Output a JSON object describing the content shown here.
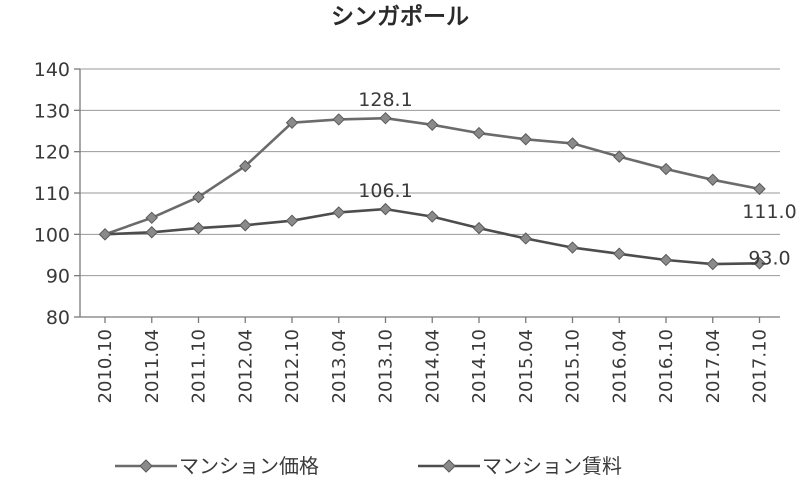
{
  "chart_data": {
    "type": "line",
    "title": "シンガポール",
    "xlabel": "",
    "ylabel": "",
    "ylim": [
      80,
      140
    ],
    "yticks": [
      80,
      90,
      100,
      110,
      120,
      130,
      140
    ],
    "grid": true,
    "legend_position": "bottom",
    "categories": [
      "2010.10",
      "2011.04",
      "2011.10",
      "2012.04",
      "2012.10",
      "2013.04",
      "2013.10",
      "2014.04",
      "2014.10",
      "2015.04",
      "2015.10",
      "2016.04",
      "2016.10",
      "2017.04",
      "2017.10"
    ],
    "series": [
      {
        "name": "マンション価格",
        "color": "#6b6b6b",
        "values": [
          100.0,
          104.0,
          109.0,
          116.5,
          127.0,
          127.8,
          128.1,
          126.5,
          124.5,
          123.0,
          122.0,
          118.8,
          115.8,
          113.2,
          111.0
        ]
      },
      {
        "name": "マンション賃料",
        "color": "#4d4d4d",
        "values": [
          100.0,
          100.5,
          101.5,
          102.2,
          103.3,
          105.3,
          106.1,
          104.3,
          101.5,
          99.0,
          96.8,
          95.3,
          93.8,
          92.8,
          93.0
        ]
      }
    ],
    "data_labels": [
      {
        "series": 0,
        "index": 6,
        "text": "128.1"
      },
      {
        "series": 0,
        "index": 14,
        "text": "111.0"
      },
      {
        "series": 1,
        "index": 6,
        "text": "106.1"
      },
      {
        "series": 1,
        "index": 14,
        "text": "93.0"
      }
    ]
  }
}
